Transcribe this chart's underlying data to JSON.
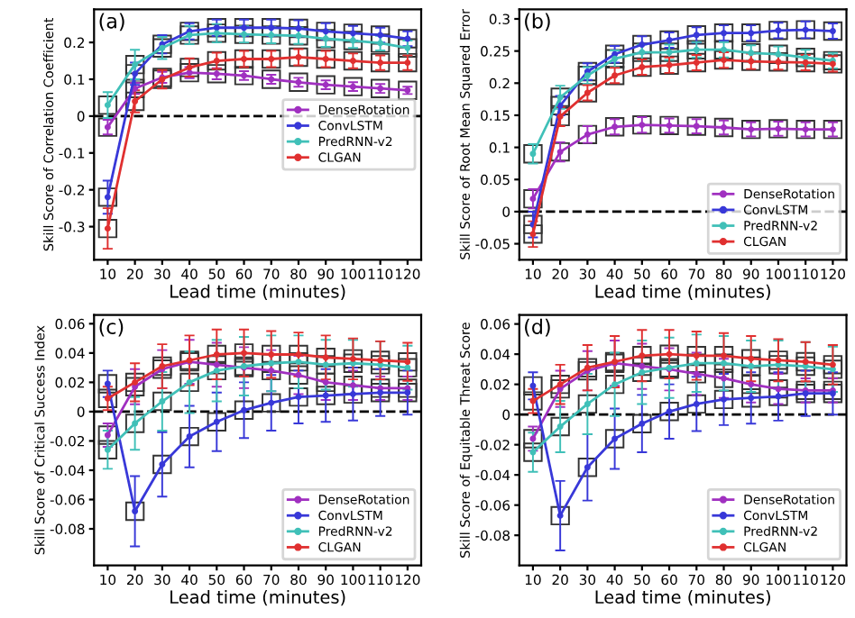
{
  "chart_data": [
    {
      "type": "line",
      "xlabel": "Lead time (minutes)",
      "ylabel": "Skill Score of Correlation Coefficient",
      "annotations": [
        "(a)"
      ],
      "x": [
        10,
        20,
        30,
        40,
        50,
        60,
        70,
        80,
        90,
        100,
        110,
        120
      ],
      "xlim": [
        5,
        125
      ],
      "xticks": [
        10,
        20,
        30,
        40,
        50,
        60,
        70,
        80,
        90,
        100,
        110,
        120
      ],
      "ylim": [
        -0.39,
        0.29
      ],
      "yticks": [
        -0.3,
        -0.2,
        -0.1,
        0.0,
        0.1,
        0.2
      ],
      "marker": "square",
      "legend": "center right",
      "ref_lines": [
        {
          "axis": "y",
          "value": 0,
          "color": "#000000",
          "line_style": "dashed"
        }
      ],
      "series": [
        {
          "name": "DenseRotation",
          "color": "#a030c0",
          "values": [
            -0.03,
            0.075,
            0.105,
            0.118,
            0.115,
            0.11,
            0.1,
            0.092,
            0.085,
            0.08,
            0.075,
            0.07
          ],
          "errors": [
            0.02,
            0.015,
            0.015,
            0.015,
            0.015,
            0.012,
            0.012,
            0.012,
            0.012,
            0.012,
            0.012,
            0.01
          ]
        },
        {
          "name": "ConvLSTM",
          "color": "#3838d8",
          "values": [
            -0.22,
            0.115,
            0.195,
            0.23,
            0.24,
            0.24,
            0.24,
            0.238,
            0.23,
            0.225,
            0.22,
            0.21
          ],
          "errors": [
            0.045,
            0.03,
            0.025,
            0.022,
            0.022,
            0.022,
            0.022,
            0.022,
            0.022,
            0.02,
            0.02,
            0.02
          ]
        },
        {
          "name": "PredRNN-v2",
          "color": "#40c0b8",
          "values": [
            0.03,
            0.14,
            0.185,
            0.22,
            0.225,
            0.222,
            0.22,
            0.218,
            0.21,
            0.205,
            0.198,
            0.185
          ],
          "errors": [
            0.035,
            0.04,
            0.03,
            0.025,
            0.025,
            0.022,
            0.022,
            0.022,
            0.022,
            0.02,
            0.02,
            0.02
          ]
        },
        {
          "name": "CLGAN",
          "color": "#e03030",
          "values": [
            -0.305,
            0.04,
            0.1,
            0.132,
            0.15,
            0.155,
            0.155,
            0.16,
            0.155,
            0.15,
            0.145,
            0.145
          ],
          "errors": [
            0.055,
            0.03,
            0.025,
            0.025,
            0.022,
            0.022,
            0.022,
            0.022,
            0.022,
            0.02,
            0.02,
            0.02
          ]
        }
      ]
    },
    {
      "type": "line",
      "xlabel": "Lead time (minutes)",
      "ylabel": "Skill Score of Root Mean Squared Error",
      "annotations": [
        "(b)"
      ],
      "x": [
        10,
        20,
        30,
        40,
        50,
        60,
        70,
        80,
        90,
        100,
        110,
        120
      ],
      "xlim": [
        5,
        125
      ],
      "xticks": [
        10,
        20,
        30,
        40,
        50,
        60,
        70,
        80,
        90,
        100,
        110,
        120
      ],
      "ylim": [
        -0.075,
        0.315
      ],
      "yticks": [
        -0.05,
        0.0,
        0.05,
        0.1,
        0.15,
        0.2,
        0.25,
        0.3
      ],
      "marker": "square",
      "legend": "lower right",
      "ref_lines": [
        {
          "axis": "y",
          "value": 0,
          "color": "#000000",
          "line_style": "dashed"
        }
      ],
      "series": [
        {
          "name": "DenseRotation",
          "color": "#a030c0",
          "values": [
            0.02,
            0.093,
            0.12,
            0.132,
            0.135,
            0.134,
            0.133,
            0.131,
            0.128,
            0.129,
            0.128,
            0.128
          ],
          "errors": [
            0.015,
            0.015,
            0.013,
            0.012,
            0.012,
            0.011,
            0.011,
            0.011,
            0.011,
            0.011,
            0.011,
            0.011
          ]
        },
        {
          "name": "ConvLSTM",
          "color": "#3838d8",
          "values": [
            -0.02,
            0.165,
            0.218,
            0.245,
            0.26,
            0.267,
            0.275,
            0.278,
            0.278,
            0.282,
            0.283,
            0.281
          ],
          "errors": [
            0.02,
            0.015,
            0.013,
            0.013,
            0.013,
            0.012,
            0.012,
            0.012,
            0.012,
            0.012,
            0.013,
            0.012
          ]
        },
        {
          "name": "PredRNN-v2",
          "color": "#40c0b8",
          "values": [
            0.09,
            0.178,
            0.212,
            0.238,
            0.248,
            0.248,
            0.252,
            0.252,
            0.247,
            0.245,
            0.24,
            0.235
          ],
          "errors": [
            0.015,
            0.018,
            0.013,
            0.013,
            0.012,
            0.012,
            0.012,
            0.012,
            0.012,
            0.012,
            0.012,
            0.012
          ]
        },
        {
          "name": "CLGAN",
          "color": "#e03030",
          "values": [
            -0.035,
            0.148,
            0.185,
            0.212,
            0.225,
            0.228,
            0.232,
            0.236,
            0.234,
            0.233,
            0.232,
            0.23
          ],
          "errors": [
            0.02,
            0.015,
            0.012,
            0.012,
            0.012,
            0.012,
            0.012,
            0.012,
            0.012,
            0.012,
            0.012,
            0.012
          ]
        }
      ]
    },
    {
      "type": "line",
      "xlabel": "Lead time (minutes)",
      "ylabel": "Skill Score of Critical Success Index",
      "annotations": [
        "(c)"
      ],
      "x": [
        10,
        20,
        30,
        40,
        50,
        60,
        70,
        80,
        90,
        100,
        110,
        120
      ],
      "xlim": [
        5,
        125
      ],
      "xticks": [
        10,
        20,
        30,
        40,
        50,
        60,
        70,
        80,
        90,
        100,
        110,
        120
      ],
      "ylim": [
        -0.105,
        0.066
      ],
      "yticks": [
        -0.08,
        -0.06,
        -0.04,
        -0.02,
        0.0,
        0.02,
        0.04,
        0.06
      ],
      "marker": "square",
      "legend": "lower right",
      "ref_lines": [
        {
          "axis": "y",
          "value": 0,
          "color": "#000000",
          "line_style": "dashed"
        }
      ],
      "series": [
        {
          "name": "DenseRotation",
          "color": "#a030c0",
          "values": [
            -0.016,
            0.017,
            0.029,
            0.034,
            0.032,
            0.03,
            0.028,
            0.025,
            0.02,
            0.018,
            0.016,
            0.016
          ],
          "errors": [
            0.008,
            0.012,
            0.013,
            0.015,
            0.015,
            0.014,
            0.014,
            0.013,
            0.012,
            0.01,
            0.008,
            0.008
          ]
        },
        {
          "name": "ConvLSTM",
          "color": "#3838d8",
          "values": [
            0.019,
            -0.068,
            -0.036,
            -0.017,
            -0.007,
            0.001,
            0.006,
            0.01,
            0.011,
            0.012,
            0.013,
            0.013
          ],
          "errors": [
            0.009,
            0.024,
            0.022,
            0.021,
            0.02,
            0.019,
            0.019,
            0.018,
            0.018,
            0.018,
            0.016,
            0.015
          ]
        },
        {
          "name": "PredRNN-v2",
          "color": "#40c0b8",
          "values": [
            -0.026,
            -0.008,
            0.007,
            0.02,
            0.028,
            0.031,
            0.033,
            0.034,
            0.032,
            0.033,
            0.032,
            0.03
          ],
          "errors": [
            0.013,
            0.018,
            0.02,
            0.021,
            0.021,
            0.02,
            0.019,
            0.018,
            0.017,
            0.016,
            0.016,
            0.015
          ]
        },
        {
          "name": "CLGAN",
          "color": "#e03030",
          "values": [
            0.009,
            0.02,
            0.031,
            0.035,
            0.039,
            0.04,
            0.039,
            0.039,
            0.037,
            0.036,
            0.035,
            0.034
          ],
          "errors": [
            0.008,
            0.013,
            0.015,
            0.017,
            0.017,
            0.016,
            0.016,
            0.015,
            0.015,
            0.014,
            0.013,
            0.013
          ]
        }
      ]
    },
    {
      "type": "line",
      "xlabel": "Lead time (minutes)",
      "ylabel": "Skill Score of Equitable Threat Score",
      "annotations": [
        "(d)"
      ],
      "x": [
        10,
        20,
        30,
        40,
        50,
        60,
        70,
        80,
        90,
        100,
        110,
        120
      ],
      "xlim": [
        5,
        125
      ],
      "xticks": [
        10,
        20,
        30,
        40,
        50,
        60,
        70,
        80,
        90,
        100,
        110,
        120
      ],
      "ylim": [
        -0.1,
        0.066
      ],
      "yticks": [
        -0.08,
        -0.06,
        -0.04,
        -0.02,
        0.0,
        0.02,
        0.04,
        0.06
      ],
      "marker": "square",
      "legend": "lower right",
      "ref_lines": [
        {
          "axis": "y",
          "value": 0,
          "color": "#000000",
          "line_style": "dashed"
        }
      ],
      "series": [
        {
          "name": "DenseRotation",
          "color": "#a030c0",
          "values": [
            -0.016,
            0.017,
            0.029,
            0.034,
            0.032,
            0.03,
            0.027,
            0.024,
            0.02,
            0.017,
            0.016,
            0.016
          ],
          "errors": [
            0.008,
            0.012,
            0.013,
            0.015,
            0.015,
            0.014,
            0.014,
            0.013,
            0.012,
            0.01,
            0.008,
            0.008
          ]
        },
        {
          "name": "ConvLSTM",
          "color": "#3838d8",
          "values": [
            0.019,
            -0.067,
            -0.035,
            -0.016,
            -0.006,
            0.002,
            0.007,
            0.01,
            0.011,
            0.012,
            0.014,
            0.014
          ],
          "errors": [
            0.009,
            0.023,
            0.022,
            0.02,
            0.019,
            0.018,
            0.018,
            0.017,
            0.017,
            0.016,
            0.015,
            0.014
          ]
        },
        {
          "name": "PredRNN-v2",
          "color": "#40c0b8",
          "values": [
            -0.025,
            -0.008,
            0.007,
            0.02,
            0.028,
            0.031,
            0.034,
            0.034,
            0.032,
            0.033,
            0.032,
            0.03
          ],
          "errors": [
            0.013,
            0.017,
            0.02,
            0.021,
            0.021,
            0.02,
            0.019,
            0.018,
            0.017,
            0.016,
            0.016,
            0.015
          ]
        },
        {
          "name": "CLGAN",
          "color": "#e03030",
          "values": [
            0.009,
            0.02,
            0.031,
            0.035,
            0.039,
            0.04,
            0.039,
            0.039,
            0.037,
            0.036,
            0.035,
            0.033
          ],
          "errors": [
            0.008,
            0.013,
            0.015,
            0.017,
            0.017,
            0.016,
            0.016,
            0.015,
            0.015,
            0.014,
            0.013,
            0.013
          ]
        }
      ]
    }
  ]
}
